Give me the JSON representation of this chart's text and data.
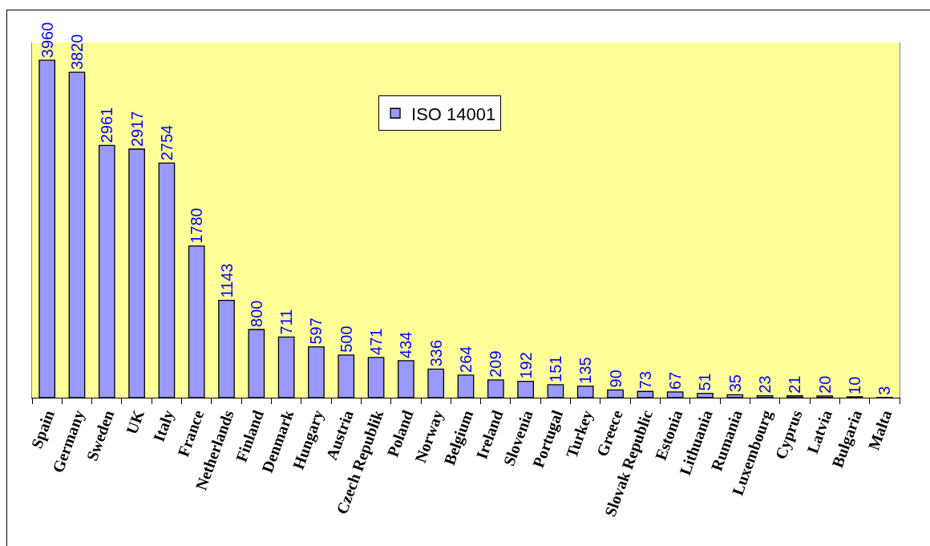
{
  "chart_data": {
    "type": "bar",
    "categories": [
      "Spain",
      "Germany",
      "Sweden",
      "UK",
      "Italy",
      "France",
      "Netherlands",
      "Finland",
      "Denmark",
      "Hungary",
      "Austria",
      "Czech Republik",
      "Poland",
      "Norway",
      "Belgium",
      "Ireland",
      "Slovenia",
      "Portugal",
      "Turkey",
      "Greece",
      "Slovak Republic",
      "Estonia",
      "Lithuania",
      "Rumania",
      "Luxembourg",
      "Cyprus",
      "Latvia",
      "Bulgaria",
      "Malta"
    ],
    "series": [
      {
        "name": "ISO 14001",
        "color": "#9999ff",
        "values": [
          3960,
          3820,
          2961,
          2917,
          2754,
          1780,
          1143,
          800,
          711,
          597,
          500,
          471,
          434,
          336,
          264,
          209,
          192,
          151,
          135,
          90,
          73,
          67,
          51,
          35,
          23,
          21,
          20,
          10,
          3
        ]
      }
    ],
    "data_labels": true,
    "legend": "top",
    "grid": false
  }
}
